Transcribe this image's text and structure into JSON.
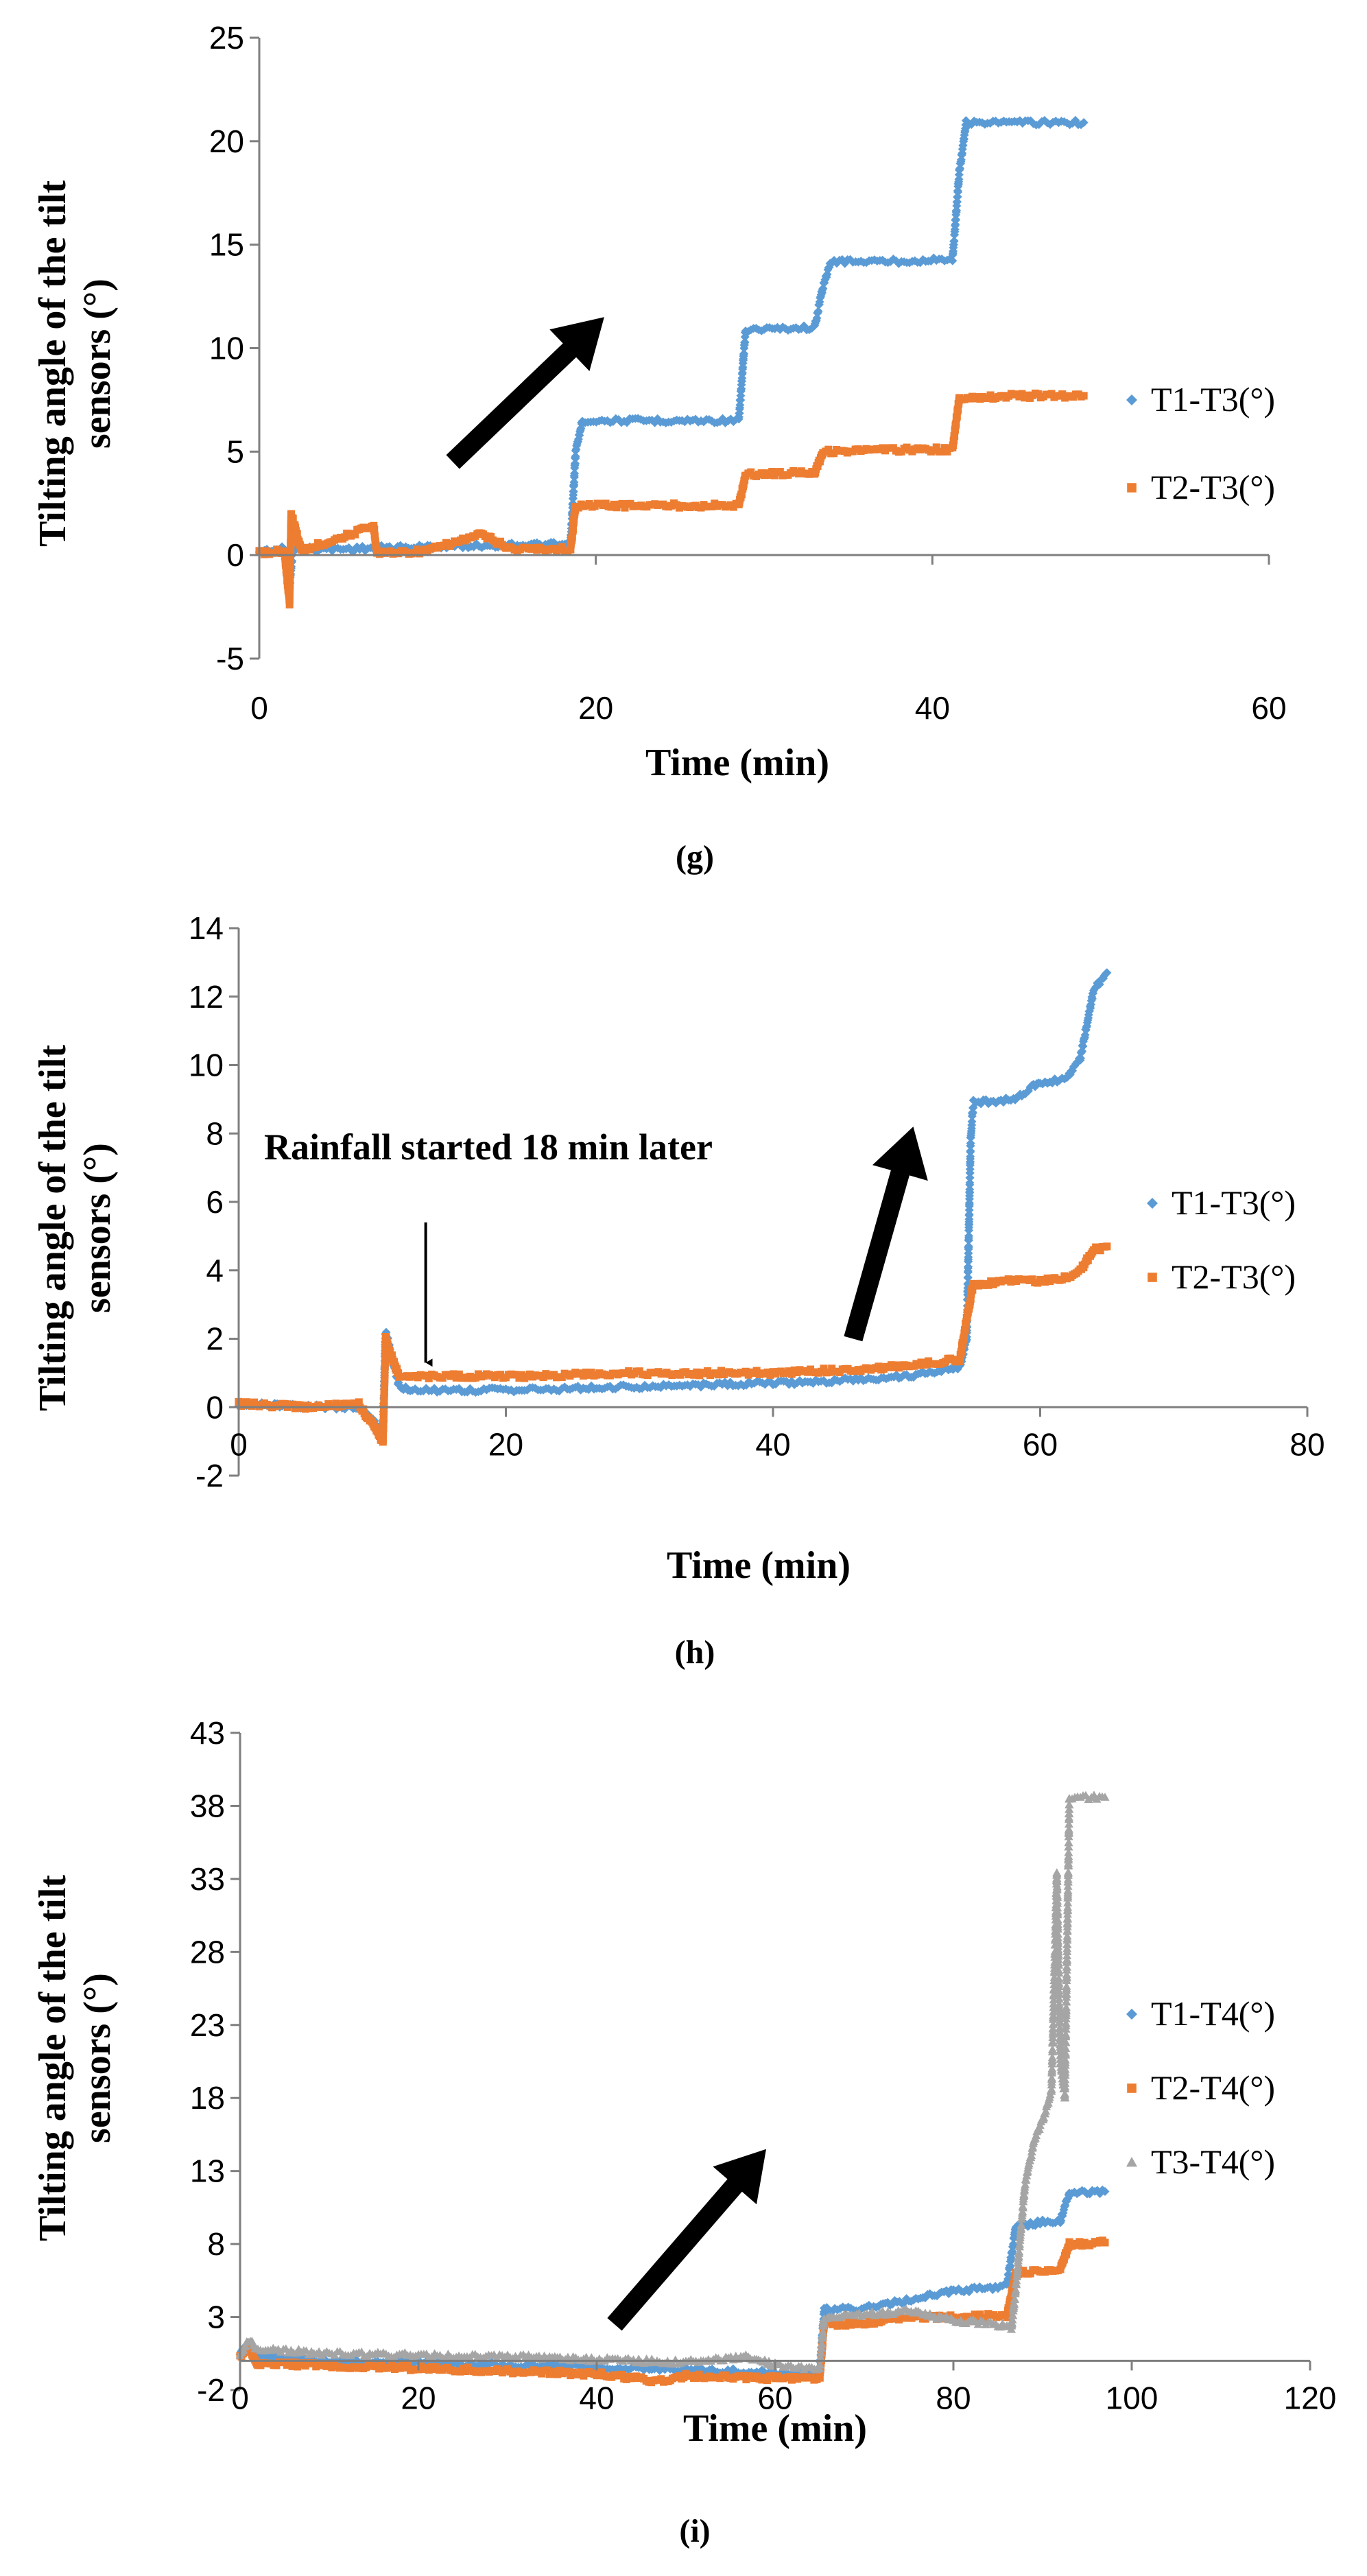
{
  "chart_data": [
    {
      "id": "g",
      "type": "scatter",
      "panel_label": "(g)",
      "xlabel": "Time (min)",
      "ylabel_line1": "Tilting angle of the tilt",
      "ylabel_line2": "sensors (°)",
      "xlim": [
        0,
        60
      ],
      "ylim": [
        -5,
        25
      ],
      "xticks": [
        0,
        20,
        40,
        60
      ],
      "yticks": [
        -5,
        0,
        5,
        10,
        15,
        20,
        25
      ],
      "xtick_labels": [
        "0",
        "20",
        "40",
        "60"
      ],
      "ytick_labels": [
        "-5",
        "0",
        "5",
        "10",
        "15",
        "20",
        "25"
      ],
      "legend_position": "right",
      "annotations": [],
      "trend_arrow": {
        "from": [
          11.5,
          4.5
        ],
        "to": [
          20.5,
          11.5
        ]
      },
      "series": [
        {
          "name": "T1-T3(°)",
          "color": "#5B9BD5",
          "marker": "diamond",
          "points": [
            [
              0,
              0.2
            ],
            [
              1.5,
              0.3
            ],
            [
              1.8,
              -1.5
            ],
            [
              2,
              0.3
            ],
            [
              5,
              0.3
            ],
            [
              10,
              0.4
            ],
            [
              15,
              0.5
            ],
            [
              18.5,
              0.5
            ],
            [
              18.8,
              5.0
            ],
            [
              19.2,
              6.5
            ],
            [
              24,
              6.5
            ],
            [
              28.5,
              6.5
            ],
            [
              28.9,
              10.9
            ],
            [
              33,
              11.0
            ],
            [
              33.5,
              13.0
            ],
            [
              34,
              14.2
            ],
            [
              38,
              14.2
            ],
            [
              41.2,
              14.3
            ],
            [
              41.6,
              18.5
            ],
            [
              42,
              20.9
            ],
            [
              46,
              20.9
            ],
            [
              49,
              20.9
            ]
          ]
        },
        {
          "name": "T2-T3(°)",
          "color": "#ED7D31",
          "marker": "square",
          "points": [
            [
              0,
              0.1
            ],
            [
              1.5,
              0.2
            ],
            [
              1.8,
              -2.3
            ],
            [
              1.9,
              2.0
            ],
            [
              2.5,
              0.2
            ],
            [
              6.8,
              1.4
            ],
            [
              7,
              0.1
            ],
            [
              10,
              0.2
            ],
            [
              13.2,
              1.0
            ],
            [
              15,
              0.3
            ],
            [
              18.5,
              0.3
            ],
            [
              18.8,
              2.4
            ],
            [
              24,
              2.4
            ],
            [
              28.5,
              2.4
            ],
            [
              28.9,
              3.9
            ],
            [
              33,
              4.0
            ],
            [
              33.5,
              5.0
            ],
            [
              38,
              5.1
            ],
            [
              41.2,
              5.1
            ],
            [
              41.6,
              7.6
            ],
            [
              45,
              7.7
            ],
            [
              49,
              7.7
            ]
          ]
        }
      ]
    },
    {
      "id": "h",
      "type": "scatter",
      "panel_label": "(h)",
      "xlabel": "Time (min)",
      "ylabel_line1": "Tilting angle of the tilt",
      "ylabel_line2": "sensors (°)",
      "xlim": [
        0,
        80
      ],
      "ylim": [
        -2,
        14
      ],
      "xticks": [
        0,
        20,
        40,
        60,
        80
      ],
      "yticks": [
        -2,
        0,
        2,
        4,
        6,
        8,
        10,
        12,
        14
      ],
      "xtick_labels": [
        "0",
        "20",
        "40",
        "60",
        "80"
      ],
      "ytick_labels": [
        "-2",
        "0",
        "2",
        "4",
        "6",
        "8",
        "10",
        "12",
        "14"
      ],
      "legend_position": "right",
      "annotations": [
        {
          "text": "Rainfall started 18 min later",
          "arrow_x": 14,
          "arrow_from_y": 5.4,
          "arrow_to_y": 1.1
        }
      ],
      "trend_arrow": {
        "from": [
          46,
          2.0
        ],
        "to": [
          50.5,
          8.2
        ]
      },
      "series": [
        {
          "name": "T1-T3(°)",
          "color": "#5B9BD5",
          "marker": "diamond",
          "points": [
            [
              0,
              0.1
            ],
            [
              5,
              0.0
            ],
            [
              9,
              0.0
            ],
            [
              10.8,
              -0.7
            ],
            [
              11,
              2.2
            ],
            [
              12,
              0.6
            ],
            [
              13,
              0.5
            ],
            [
              20,
              0.5
            ],
            [
              30,
              0.6
            ],
            [
              40,
              0.7
            ],
            [
              46,
              0.8
            ],
            [
              50,
              0.9
            ],
            [
              54,
              1.2
            ],
            [
              54.5,
              2.0
            ],
            [
              54.8,
              7.9
            ],
            [
              55,
              8.9
            ],
            [
              58,
              9.0
            ],
            [
              60,
              9.5
            ],
            [
              62,
              9.6
            ],
            [
              63,
              10.2
            ],
            [
              64,
              12.2
            ],
            [
              65,
              12.7
            ]
          ]
        },
        {
          "name": "T2-T3(°)",
          "color": "#ED7D31",
          "marker": "square",
          "points": [
            [
              0,
              0.1
            ],
            [
              5,
              0.0
            ],
            [
              9,
              0.1
            ],
            [
              10.8,
              -1.0
            ],
            [
              11,
              2.0
            ],
            [
              12,
              0.9
            ],
            [
              13,
              0.9
            ],
            [
              20,
              0.9
            ],
            [
              30,
              1.0
            ],
            [
              40,
              1.0
            ],
            [
              46,
              1.1
            ],
            [
              50,
              1.2
            ],
            [
              54,
              1.4
            ],
            [
              54.5,
              2.6
            ],
            [
              55,
              3.6
            ],
            [
              58,
              3.7
            ],
            [
              60,
              3.7
            ],
            [
              62,
              3.8
            ],
            [
              63,
              4.0
            ],
            [
              64,
              4.6
            ],
            [
              65,
              4.7
            ]
          ]
        }
      ]
    },
    {
      "id": "i",
      "type": "scatter",
      "panel_label": "(i)",
      "xlabel": "Time (min)",
      "ylabel_line1": "Tilting angle of the tilt",
      "ylabel_line2": "sensors (°)",
      "xlim": [
        0,
        120
      ],
      "ylim": [
        -2,
        43
      ],
      "xticks": [
        0,
        20,
        40,
        60,
        80,
        100,
        120
      ],
      "yticks": [
        -2,
        3,
        8,
        13,
        18,
        23,
        28,
        33,
        38,
        43
      ],
      "xtick_labels": [
        "0",
        "20",
        "40",
        "60",
        "80",
        "100",
        "120"
      ],
      "ytick_labels": [
        "-2",
        "3",
        "8",
        "13",
        "18",
        "23",
        "28",
        "33",
        "38",
        "43"
      ],
      "legend_position": "right",
      "annotations": [],
      "trend_arrow": {
        "from": [
          42,
          2.5
        ],
        "to": [
          59,
          14.5
        ]
      },
      "series": [
        {
          "name": "T1-T4(°)",
          "color": "#5B9BD5",
          "marker": "diamond",
          "points": [
            [
              0,
              0.5
            ],
            [
              1,
              1.2
            ],
            [
              2,
              0.3
            ],
            [
              10,
              0.0
            ],
            [
              20,
              -0.1
            ],
            [
              30,
              -0.3
            ],
            [
              40,
              -0.4
            ],
            [
              50,
              -0.6
            ],
            [
              60,
              -0.8
            ],
            [
              65,
              -0.9
            ],
            [
              65.5,
              3.5
            ],
            [
              70,
              3.6
            ],
            [
              75,
              4.2
            ],
            [
              80,
              4.8
            ],
            [
              85,
              5.0
            ],
            [
              86,
              5.2
            ],
            [
              87,
              9.2
            ],
            [
              90,
              9.5
            ],
            [
              92,
              9.6
            ],
            [
              93,
              11.5
            ],
            [
              97,
              11.6
            ]
          ]
        },
        {
          "name": "T2-T4(°)",
          "color": "#ED7D31",
          "marker": "square",
          "points": [
            [
              0,
              0.3
            ],
            [
              1,
              0.8
            ],
            [
              2,
              -0.2
            ],
            [
              10,
              -0.3
            ],
            [
              20,
              -0.5
            ],
            [
              30,
              -0.7
            ],
            [
              40,
              -0.9
            ],
            [
              47.5,
              -1.4
            ],
            [
              50,
              -1.0
            ],
            [
              60,
              -1.2
            ],
            [
              65,
              -1.2
            ],
            [
              65.5,
              2.5
            ],
            [
              70,
              2.6
            ],
            [
              75,
              3.0
            ],
            [
              80,
              3.0
            ],
            [
              86,
              3.1
            ],
            [
              87,
              6.0
            ],
            [
              90,
              6.2
            ],
            [
              92,
              6.3
            ],
            [
              93,
              8.0
            ],
            [
              97,
              8.1
            ]
          ]
        },
        {
          "name": "T3-T4(°)",
          "color": "#A5A5A5",
          "marker": "triangle",
          "points": [
            [
              0,
              0.5
            ],
            [
              1,
              1.4
            ],
            [
              2,
              0.8
            ],
            [
              10,
              0.5
            ],
            [
              20,
              0.4
            ],
            [
              30,
              0.3
            ],
            [
              40,
              0.1
            ],
            [
              50,
              -0.1
            ],
            [
              57,
              0.3
            ],
            [
              60,
              -0.3
            ],
            [
              65,
              -0.5
            ],
            [
              65.5,
              3.0
            ],
            [
              70,
              3.2
            ],
            [
              75,
              3.4
            ],
            [
              80,
              2.8
            ],
            [
              85,
              2.5
            ],
            [
              86.5,
              2.2
            ],
            [
              87,
              5.0
            ],
            [
              88,
              12.0
            ],
            [
              89,
              15.0
            ],
            [
              90,
              16.5
            ],
            [
              91,
              18.5
            ],
            [
              91.6,
              33.5
            ],
            [
              92,
              20.5
            ],
            [
              92.5,
              18.0
            ],
            [
              93,
              38.6
            ],
            [
              97,
              38.6
            ]
          ]
        }
      ]
    }
  ]
}
